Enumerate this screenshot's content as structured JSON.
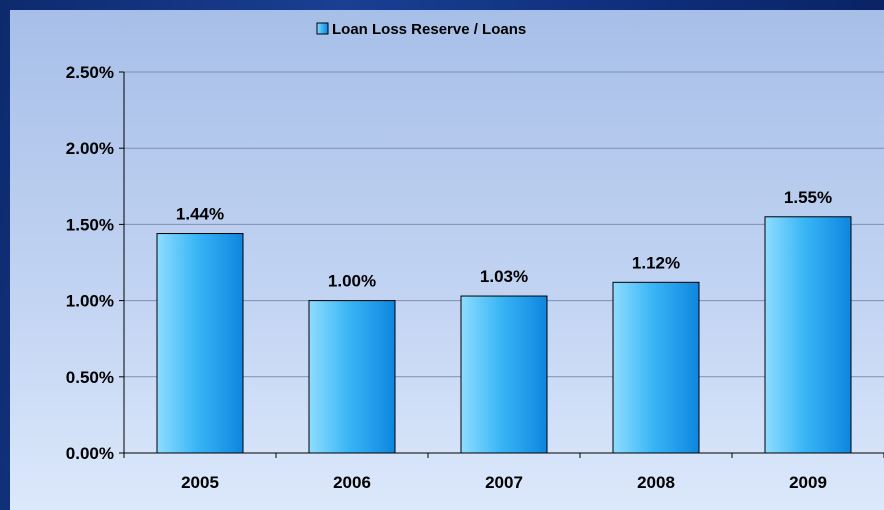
{
  "chart_data": {
    "type": "bar",
    "title": "",
    "xlabel": "",
    "ylabel": "",
    "categories": [
      "2005",
      "2006",
      "2007",
      "2008",
      "2009"
    ],
    "series": [
      {
        "name": "Loan Loss Reserve / Loans",
        "values": [
          1.44,
          1.0,
          1.03,
          1.12,
          1.55
        ]
      }
    ],
    "data_labels": [
      "1.44%",
      "1.00%",
      "1.03%",
      "1.12%",
      "1.55%"
    ],
    "ylim": [
      0,
      2.5
    ],
    "y_ticks": [
      0,
      0.5,
      1.0,
      1.5,
      2.0,
      2.5
    ],
    "y_tick_labels": [
      "0.00%",
      "0.50%",
      "1.00%",
      "1.50%",
      "2.00%",
      "2.50%"
    ],
    "grid": true,
    "legend_position": "top-center",
    "colors": {
      "bar_light": "#9ee4ff",
      "bar_dark": "#0f8ee6",
      "grid": "#7f8fb0",
      "axis": "#000000"
    }
  }
}
